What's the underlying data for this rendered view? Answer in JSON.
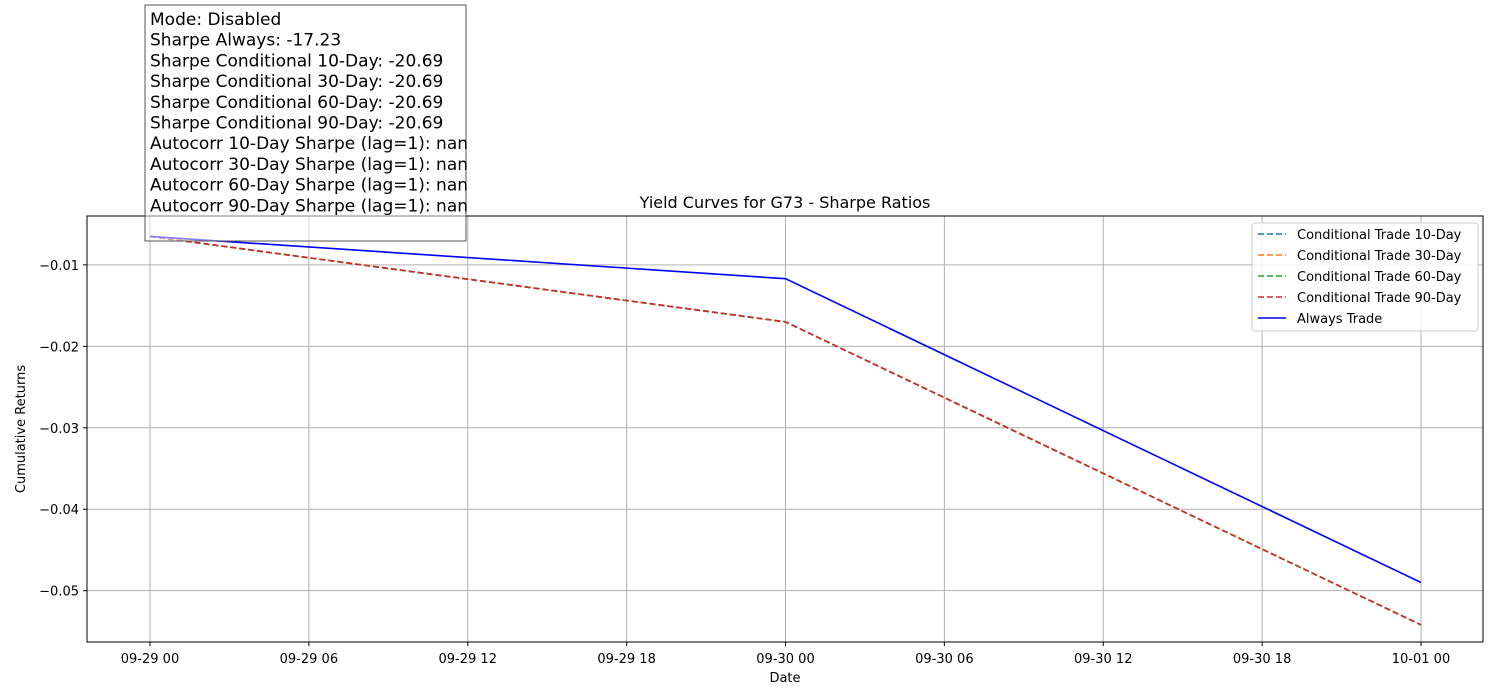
{
  "chart_data": {
    "type": "line",
    "title": "Yield Curves for G73 - Sharpe Ratios",
    "xlabel": "Date",
    "ylabel": "Cumulative Returns",
    "x": [
      "2024-09-29 00:00",
      "2024-09-30 00:00",
      "2024-10-01 00:00"
    ],
    "x_tick_labels": [
      "09-29 00",
      "09-29 06",
      "09-29 12",
      "09-29 18",
      "09-30 00",
      "09-30 06",
      "09-30 12",
      "09-30 18",
      "10-01 00"
    ],
    "y_ticks": [
      -0.01,
      -0.02,
      -0.03,
      -0.04,
      -0.05
    ],
    "y_tick_labels": [
      "−0.01",
      "−0.02",
      "−0.03",
      "−0.04",
      "−0.05"
    ],
    "ylim": [
      -0.0563,
      -0.004
    ],
    "grid": true,
    "legend_position": "top-right",
    "series": [
      {
        "name": "Conditional Trade 10-Day",
        "color": "#1f77b4",
        "style": "dashed",
        "values": [
          -0.0065,
          -0.017,
          -0.0542
        ]
      },
      {
        "name": "Conditional Trade 30-Day",
        "color": "#ff7f0e",
        "style": "dashed",
        "values": [
          -0.0065,
          -0.017,
          -0.0542
        ]
      },
      {
        "name": "Conditional Trade 60-Day",
        "color": "#2ca02c",
        "style": "dashed",
        "values": [
          -0.0065,
          -0.017,
          -0.0542
        ]
      },
      {
        "name": "Conditional Trade 90-Day",
        "color": "#d62728",
        "style": "dashed",
        "values": [
          -0.0065,
          -0.017,
          -0.0542
        ]
      },
      {
        "name": "Always Trade",
        "color": "#0000ff",
        "style": "solid",
        "values": [
          -0.0065,
          -0.0117,
          -0.049
        ]
      }
    ],
    "annotation_lines": [
      "Mode: Disabled",
      "Sharpe Always: -17.23",
      "Sharpe Conditional 10-Day: -20.69",
      "Sharpe Conditional 30-Day: -20.69",
      "Sharpe Conditional 60-Day: -20.69",
      "Sharpe Conditional 90-Day: -20.69",
      "Autocorr 10-Day Sharpe (lag=1): nan",
      "Autocorr 30-Day Sharpe (lag=1): nan",
      "Autocorr 60-Day Sharpe (lag=1): nan",
      "Autocorr 90-Day Sharpe (lag=1): nan"
    ]
  }
}
